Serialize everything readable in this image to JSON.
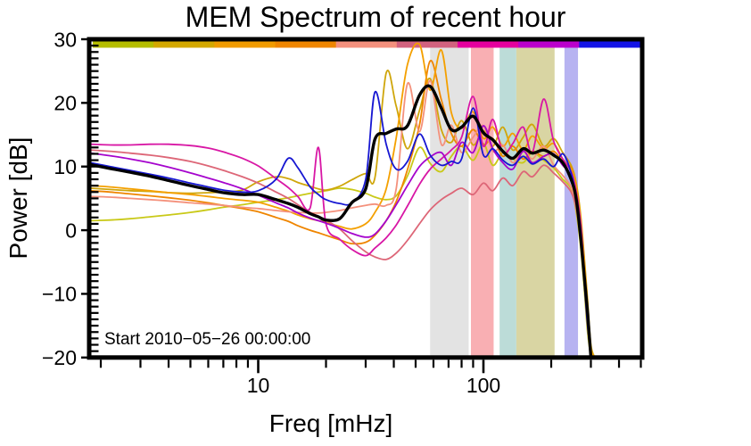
{
  "title": "MEM Spectrum of recent hour",
  "annotation": {
    "start_label": "Start 2010−05−26 00:00:00"
  },
  "axes": {
    "xlabel": "Freq [mHz]",
    "ylabel": "Power [dB]",
    "x_scale": "log",
    "xlim_mhz": [
      1.8,
      506
    ],
    "ylim_db": [
      -20,
      30
    ],
    "x_major": [
      {
        "f": 10,
        "label": "10"
      },
      {
        "f": 100,
        "label": "100"
      }
    ],
    "x_minor": [
      2,
      3,
      4,
      5,
      6,
      7,
      8,
      9,
      20,
      30,
      40,
      50,
      60,
      70,
      80,
      90,
      200,
      300,
      400,
      500
    ],
    "y_major": [
      {
        "v": 30,
        "label": "30"
      },
      {
        "v": 20,
        "label": "20"
      },
      {
        "v": 10,
        "label": "10"
      },
      {
        "v": 0,
        "label": "0"
      },
      {
        "v": -10,
        "label": "−10"
      },
      {
        "v": -20,
        "label": "−20"
      }
    ],
    "y_minor_step": 1
  },
  "chart_data": {
    "type": "line",
    "title": "MEM Spectrum of recent hour",
    "xlabel": "Freq [mHz]",
    "ylabel": "Power [dB]",
    "x_unit": "mHz",
    "y_unit": "dB",
    "x": [
      1.8,
      2.2,
      2.7,
      3.3,
      4,
      5,
      6,
      7,
      8.5,
      10,
      12,
      13.6,
      15,
      17,
      18.5,
      20,
      23,
      26,
      30,
      33,
      37,
      41,
      46,
      52,
      58,
      65,
      72,
      80,
      90,
      100,
      110,
      122,
      135,
      150,
      165,
      185,
      205,
      225,
      245,
      258,
      270,
      280,
      290,
      300,
      312,
      325
    ],
    "series": [
      {
        "name": "olive",
        "color": "#c9c918",
        "width": 1.8,
        "values": [
          1.5,
          1.6,
          1.8,
          2.1,
          2.4,
          2.8,
          3.2,
          3.6,
          4.0,
          4.4,
          4.8,
          5.1,
          5.4,
          5.8,
          6.0,
          6.2,
          6.6,
          6.4,
          5.8,
          5.2,
          4.8,
          5.4,
          8.5,
          13.0,
          10.5,
          9.2,
          11.6,
          13.2,
          11.0,
          13.6,
          10.2,
          12.2,
          11.2,
          10.6,
          12.2,
          11.0,
          9.8,
          8.0,
          6.5,
          3.0,
          -2.5,
          -9.0,
          -16.0,
          -20,
          null,
          null
        ]
      },
      {
        "name": "gold",
        "color": "#cfa60b",
        "width": 1.8,
        "values": [
          6.6,
          6.4,
          6.2,
          6.1,
          5.9,
          5.8,
          5.9,
          6.0,
          6.3,
          7.6,
          8.4,
          8.1,
          7.5,
          6.9,
          6.5,
          6.3,
          6.9,
          7.9,
          8.9,
          8.3,
          24.7,
          19.5,
          12.8,
          18.8,
          23.8,
          15.8,
          13.8,
          17.2,
          13.4,
          15.6,
          13.2,
          16.2,
          12.6,
          14.6,
          16.6,
          13.2,
          14.4,
          12.2,
          10.2,
          7.5,
          2.5,
          -4.0,
          -11.0,
          -18.0,
          -20,
          null
        ]
      },
      {
        "name": "orange-deep",
        "color": "#ef8500",
        "width": 1.8,
        "values": [
          6.2,
          6.0,
          5.7,
          5.4,
          5.1,
          4.7,
          4.3,
          3.9,
          3.4,
          2.9,
          2.0,
          1.4,
          0.7,
          0.0,
          -0.4,
          -0.8,
          -1.5,
          -2.1,
          -1.9,
          -0.8,
          1.5,
          4.5,
          9.5,
          16.5,
          26.6,
          20.5,
          15.2,
          13.2,
          15.8,
          13.4,
          14.4,
          11.6,
          13.2,
          11.2,
          12.4,
          11.6,
          12.4,
          10.8,
          9.8,
          6.8,
          1.8,
          -5.0,
          -12.5,
          -19.0,
          -20,
          null
        ]
      },
      {
        "name": "amber",
        "color": "#f4a000",
        "width": 1.8,
        "values": [
          7.0,
          6.8,
          6.5,
          6.2,
          5.9,
          5.6,
          5.3,
          5.0,
          4.7,
          4.4,
          3.6,
          3.0,
          2.4,
          1.8,
          1.5,
          1.2,
          0.6,
          0.2,
          1.0,
          2.8,
          6.5,
          14.5,
          26.0,
          29.2,
          22.0,
          28.3,
          18.5,
          16.0,
          18.6,
          14.4,
          16.2,
          13.2,
          15.2,
          12.6,
          14.8,
          12.8,
          13.6,
          11.2,
          9.5,
          7.0,
          2.0,
          -4.5,
          -11.5,
          -18.5,
          -20,
          null
        ]
      },
      {
        "name": "salmon",
        "color": "#f4917c",
        "width": 1.8,
        "values": [
          5.3,
          5.2,
          5.0,
          4.8,
          4.6,
          4.3,
          4.1,
          3.9,
          3.6,
          3.4,
          3.1,
          2.9,
          2.8,
          2.7,
          2.7,
          2.8,
          3.1,
          3.5,
          3.9,
          4.1,
          3.9,
          6.5,
          23.0,
          15.5,
          23.5,
          13.5,
          16.5,
          12.2,
          14.6,
          16.4,
          12.4,
          13.4,
          10.6,
          12.6,
          11.2,
          13.2,
          10.2,
          8.6,
          6.8,
          4.0,
          -1.0,
          -7.5,
          -14.5,
          -20,
          null,
          null
        ]
      },
      {
        "name": "rose",
        "color": "#dd6677",
        "width": 1.8,
        "values": [
          12.6,
          12.4,
          12.1,
          11.8,
          11.4,
          10.8,
          10.1,
          9.4,
          8.4,
          7.4,
          6.0,
          5.0,
          4.0,
          2.8,
          2.2,
          1.6,
          0.2,
          -1.6,
          -3.4,
          -4.2,
          -4.6,
          -3.6,
          -1.6,
          1.0,
          3.2,
          4.8,
          5.8,
          6.6,
          5.6,
          7.4,
          6.2,
          8.2,
          7.0,
          9.2,
          8.4,
          10.2,
          9.0,
          7.6,
          6.0,
          3.5,
          -1.5,
          -8.0,
          -15.0,
          -20,
          null,
          null
        ]
      },
      {
        "name": "magenta",
        "color": "#d817a5",
        "width": 1.8,
        "values": [
          13.5,
          13.4,
          13.4,
          13.5,
          13.5,
          13.3,
          12.9,
          12.3,
          11.3,
          10.1,
          8.1,
          6.7,
          5.3,
          3.5,
          13.0,
          1.0,
          -1.4,
          -3.0,
          -4.0,
          -2.8,
          -1.2,
          0.8,
          3.8,
          7.2,
          9.6,
          11.2,
          12.6,
          14.6,
          21.0,
          13.2,
          17.4,
          12.2,
          13.6,
          16.2,
          12.2,
          20.6,
          14.0,
          11.2,
          9.2,
          6.2,
          1.2,
          -6.0,
          -13.0,
          -19.5,
          -20,
          null
        ]
      },
      {
        "name": "purple",
        "color": "#a504cd",
        "width": 1.8,
        "values": [
          12.1,
          11.7,
          11.2,
          10.6,
          9.9,
          9.0,
          8.2,
          7.5,
          6.5,
          5.5,
          4.3,
          3.5,
          2.7,
          1.9,
          1.5,
          1.1,
          0.3,
          -0.5,
          -1.1,
          -0.6,
          1.5,
          4.0,
          7.0,
          10.0,
          11.5,
          12.2,
          10.2,
          13.8,
          12.2,
          16.4,
          12.8,
          10.6,
          9.6,
          12.4,
          10.6,
          11.6,
          12.0,
          10.2,
          8.6,
          5.5,
          0.5,
          -6.5,
          -13.5,
          -20,
          null,
          null
        ]
      },
      {
        "name": "blue",
        "color": "#1717d2",
        "width": 1.8,
        "values": [
          10.6,
          10.0,
          9.4,
          8.8,
          8.2,
          7.4,
          6.8,
          6.3,
          6.0,
          6.2,
          8.0,
          11.3,
          9.8,
          6.8,
          5.6,
          4.8,
          4.2,
          4.3,
          8.0,
          21.7,
          13.5,
          9.6,
          10.8,
          15.1,
          11.8,
          10.2,
          10.8,
          11.2,
          19.2,
          11.8,
          12.8,
          11.0,
          10.2,
          11.6,
          10.4,
          11.2,
          10.0,
          12.0,
          9.0,
          5.0,
          -1.0,
          -8.0,
          -15.0,
          -20,
          null,
          null
        ]
      },
      {
        "name": "mean",
        "color": "#000000",
        "width": 3.4,
        "values": [
          10.3,
          9.7,
          9.1,
          8.5,
          7.8,
          7.0,
          6.4,
          5.9,
          5.6,
          5.6,
          4.8,
          4.2,
          3.6,
          2.6,
          2.1,
          1.6,
          1.8,
          4.3,
          6.5,
          14.3,
          15.2,
          15.9,
          16.4,
          21.2,
          22.6,
          19.2,
          15.8,
          16.2,
          17.9,
          15.3,
          14.2,
          12.4,
          11.3,
          12.8,
          12.1,
          12.6,
          11.8,
          10.6,
          8.0,
          5.0,
          -1.0,
          -7.0,
          -13.0,
          -20,
          null,
          null
        ]
      }
    ],
    "bands": [
      {
        "name": "gray",
        "f_range": [
          58,
          86
        ],
        "color": "#e3e3e3"
      },
      {
        "name": "pink",
        "f_range": [
          88,
          111
        ],
        "color": "#f9afb3"
      },
      {
        "name": "teal",
        "f_range": [
          118,
          140
        ],
        "color": "#bcdcd8"
      },
      {
        "name": "khaki",
        "f_range": [
          140,
          207
        ],
        "color": "#d9d5a3"
      },
      {
        "name": "lavender",
        "f_range": [
          229,
          263
        ],
        "color": "#b7b3f1"
      }
    ],
    "top_bar_colors": [
      "#b5bd00",
      "#d4a800",
      "#f09b00",
      "#ef8600",
      "#f4917e",
      "#d2627f",
      "#e5009e",
      "#bb00cc",
      "#1414e6"
    ],
    "legend": "none",
    "grid": "off"
  }
}
